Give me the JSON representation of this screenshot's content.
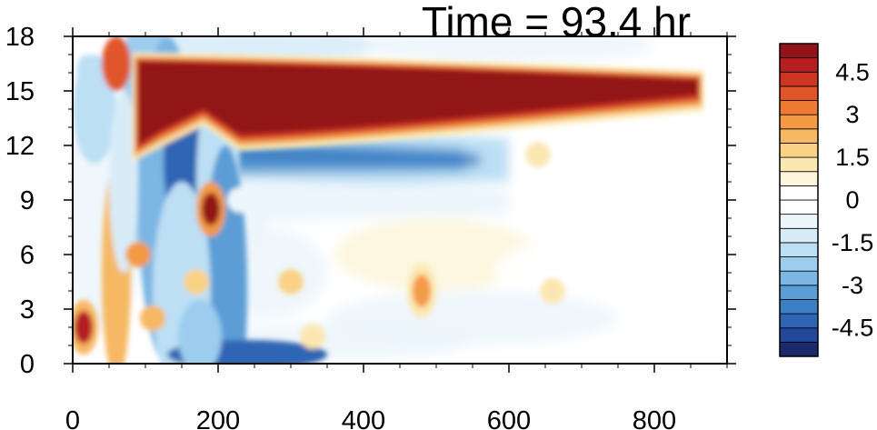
{
  "chart_data": {
    "type": "heatmap",
    "title": "Time = 93.4 hr",
    "xlabel": "",
    "ylabel": "",
    "xlim": [
      0,
      900
    ],
    "ylim": [
      0,
      18
    ],
    "x_ticks": [
      0,
      200,
      400,
      600,
      800
    ],
    "y_ticks": [
      0,
      3,
      6,
      9,
      12,
      15,
      18
    ],
    "x_tick_labels": [
      "0",
      "200",
      "400",
      "600",
      "800"
    ],
    "y_tick_labels": [
      "0",
      "3",
      "6",
      "9",
      "12",
      "15",
      "18"
    ],
    "colorbar": {
      "levels": [
        -5.5,
        -5,
        -4.5,
        -4,
        -3.5,
        -3,
        -2.5,
        -2,
        -1.5,
        -1,
        -0.5,
        0,
        0.5,
        1,
        1.5,
        2,
        2.5,
        3,
        3.5,
        4,
        4.5,
        5,
        5.5
      ],
      "labels": [
        "-4.5",
        "-3",
        "-1.5",
        "0",
        "1.5",
        "3",
        "4.5"
      ],
      "label_values": [
        -4.5,
        -3,
        -1.5,
        0,
        1.5,
        3,
        4.5
      ],
      "colors": [
        "#1b2a6b",
        "#23479a",
        "#2e65b4",
        "#3d7fc4",
        "#5b9dd6",
        "#7cb6e3",
        "#9ccdee",
        "#bcdff4",
        "#d8ecf8",
        "#edf6fc",
        "#ffffff",
        "#ffffff",
        "#fdf6dd",
        "#fbe7b1",
        "#f9d286",
        "#f6b863",
        "#f39a45",
        "#ec7a33",
        "#e0562a",
        "#cf3525",
        "#b61e22",
        "#921418"
      ]
    },
    "features": [
      {
        "kind": "band",
        "description": "positive",
        "x": [
          90,
          860
        ],
        "y_top": [
          16.6,
          15.6
        ],
        "y_bottom": [
          12.6,
          14.8
        ],
        "value": 5.5
      },
      {
        "kind": "band",
        "description": "negative",
        "x": [
          110,
          600
        ],
        "y_center": [
          11.6,
          11.2
        ],
        "value": -4
      },
      {
        "kind": "blob",
        "x": 190,
        "y": 8.5,
        "value": 5
      },
      {
        "kind": "blob",
        "x": 15,
        "y": 2,
        "value": 4.5
      },
      {
        "kind": "blob",
        "x": 480,
        "y": 4,
        "value": 2.5
      }
    ]
  }
}
